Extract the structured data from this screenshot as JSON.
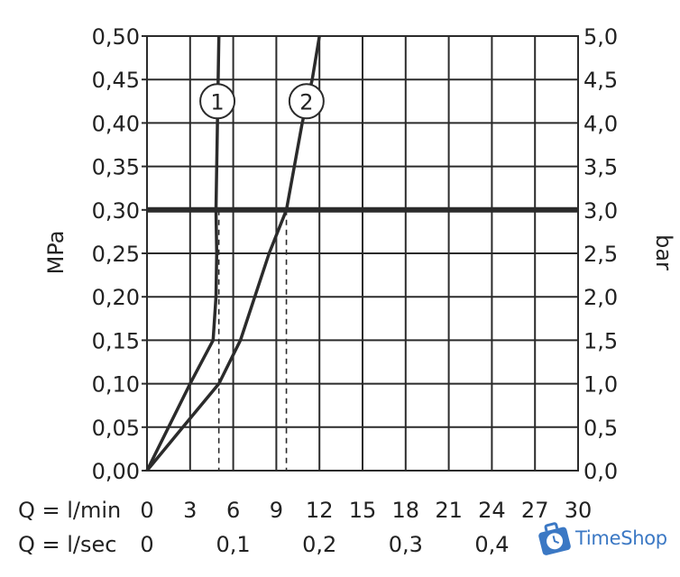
{
  "chart_data": {
    "type": "line",
    "y_left": {
      "label": "MPa",
      "range": [
        0,
        0.5
      ],
      "ticks": [
        "0,00",
        "0,05",
        "0,10",
        "0,15",
        "0,20",
        "0,25",
        "0,30",
        "0,35",
        "0,40",
        "0,45",
        "0,50"
      ]
    },
    "y_right": {
      "label": "bar",
      "range": [
        0,
        5
      ],
      "ticks": [
        "0,0",
        "0,5",
        "1,0",
        "1,5",
        "2,0",
        "2,5",
        "3,0",
        "3,5",
        "4,0",
        "4,5",
        "5,0"
      ]
    },
    "x_lmin": {
      "label": "Q = l/min",
      "range": [
        0,
        30
      ],
      "ticks": [
        "0",
        "3",
        "6",
        "9",
        "12",
        "15",
        "18",
        "21",
        "24",
        "27",
        "30"
      ]
    },
    "x_lsec": {
      "label": "Q = l/sec",
      "ticks": [
        {
          "label": "0",
          "value": 0
        },
        {
          "label": "0,1",
          "value": 0.1
        },
        {
          "label": "0,2",
          "value": 0.2
        },
        {
          "label": "0,3",
          "value": 0.3
        },
        {
          "label": "0,4",
          "value": 0.4
        }
      ]
    },
    "grid": true,
    "reference_line": {
      "mpa": 0.3
    },
    "series": [
      {
        "name": "1",
        "color": "#2b2b2b",
        "x": [
          0,
          1.5,
          3,
          4.6,
          4.8,
          4.85,
          4.8,
          4.85,
          4.9,
          5.0
        ],
        "y": [
          0,
          0.05,
          0.1,
          0.15,
          0.2,
          0.25,
          0.3,
          0.35,
          0.4,
          0.5
        ],
        "drop_x": 5.0
      },
      {
        "name": "2",
        "color": "#2b2b2b",
        "x": [
          0,
          2.5,
          5,
          6.5,
          8.5,
          9.7,
          10.8,
          11.5,
          12.0
        ],
        "y": [
          0,
          0.05,
          0.1,
          0.15,
          0.25,
          0.3,
          0.4,
          0.45,
          0.5
        ],
        "drop_x": 9.7
      }
    ]
  },
  "logo": {
    "text": "TimeShop",
    "color": "#3b78c4"
  }
}
